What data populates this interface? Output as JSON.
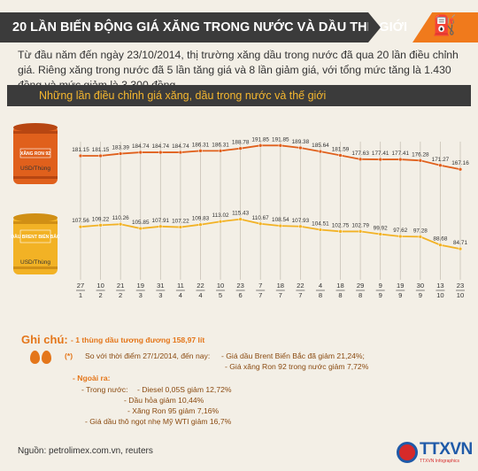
{
  "title": "20 LẦN BIẾN ĐỘNG GIÁ XĂNG TRONG NƯỚC VÀ DẦU THẾ GIỚI",
  "corner_icon": "gas-pump-icon",
  "intro": "Từ đầu năm đến ngày 23/10/2014, thị trường xăng dầu trong nước đã qua 20 lần điều chỉnh giá. Riêng xăng trong nước đã 5 lần tăng giá và 8 lần giảm giá, với tổng mức tăng là 1.430 đồng và mức giảm là 3.300 đồng.",
  "chart_title": "Những lần điều chỉnh giá xăng, dầu trong nước và thế giới",
  "chart_data": {
    "type": "line",
    "title": "Những lần điều chỉnh giá xăng, dầu trong nước và thế giới",
    "categories": [
      "27/1",
      "10/2",
      "21/2",
      "19/3",
      "31/3",
      "11/4",
      "22/4",
      "10/5",
      "23/6",
      "7/7",
      "18/7",
      "22/7",
      "4/8",
      "18/8",
      "29/8",
      "9/9",
      "19/9",
      "30/9",
      "13/10",
      "23/10"
    ],
    "x_day": [
      "27",
      "10",
      "21",
      "19",
      "31",
      "11",
      "22",
      "10",
      "23",
      "7",
      "18",
      "22",
      "4",
      "18",
      "29",
      "9",
      "19",
      "30",
      "13",
      "23"
    ],
    "x_month": [
      "1",
      "2",
      "2",
      "3",
      "3",
      "4",
      "4",
      "5",
      "6",
      "7",
      "7",
      "7",
      "8",
      "8",
      "8",
      "9",
      "9",
      "9",
      "10",
      "10"
    ],
    "series": [
      {
        "name": "XĂNG RON 92",
        "unit": "USD/Thùng",
        "color": "#e0601c",
        "values": [
          181.15,
          181.15,
          183.39,
          184.74,
          184.74,
          184.74,
          186.31,
          186.31,
          188.78,
          191.85,
          191.85,
          189.38,
          185.64,
          181.59,
          177.63,
          177.41,
          177.41,
          176.28,
          171.27,
          167.16
        ]
      },
      {
        "name": "DẦU BRENT BIỂN BẮC",
        "unit": "USD/Thùng",
        "color": "#f2b225",
        "values": [
          107.56,
          109.22,
          110.26,
          105.85,
          107.91,
          107.22,
          109.83,
          113.02,
          115.43,
          110.67,
          108.54,
          107.93,
          104.51,
          102.75,
          102.79,
          99.92,
          97.62,
          97.28,
          88.68,
          84.71
        ]
      }
    ],
    "ylim": [
      60,
      205
    ],
    "grid": true
  },
  "notes": {
    "header": "Ghi chú:",
    "barrel": "- 1 thùng dầu tương đương 158,97 lít",
    "star": "(*)",
    "compare": "So với thời điểm 27/1/2014, đến nay:",
    "brent": "- Giá dầu Brent Biển Bắc đã giảm 21,24%;",
    "ron": "- Giá xăng Ron 92 trong nước giảm 7,72%",
    "extra": "- Ngoài ra:",
    "domestic": "- Trong nước:",
    "diesel": "- Diesel 0,05S giảm 12,72%",
    "kerosene": "- Dầu hỏa giảm 10,44%",
    "ron95": "- Xăng Ron 95 giảm 7,16%",
    "wti": "- Giá dầu thô ngọt nhẹ Mỹ WTI giảm 16,7%"
  },
  "source": "Nguồn: petrolimex.com.vn, reuters",
  "logo": {
    "text": "TTXVN",
    "sub": "TTXVN Infographics"
  }
}
